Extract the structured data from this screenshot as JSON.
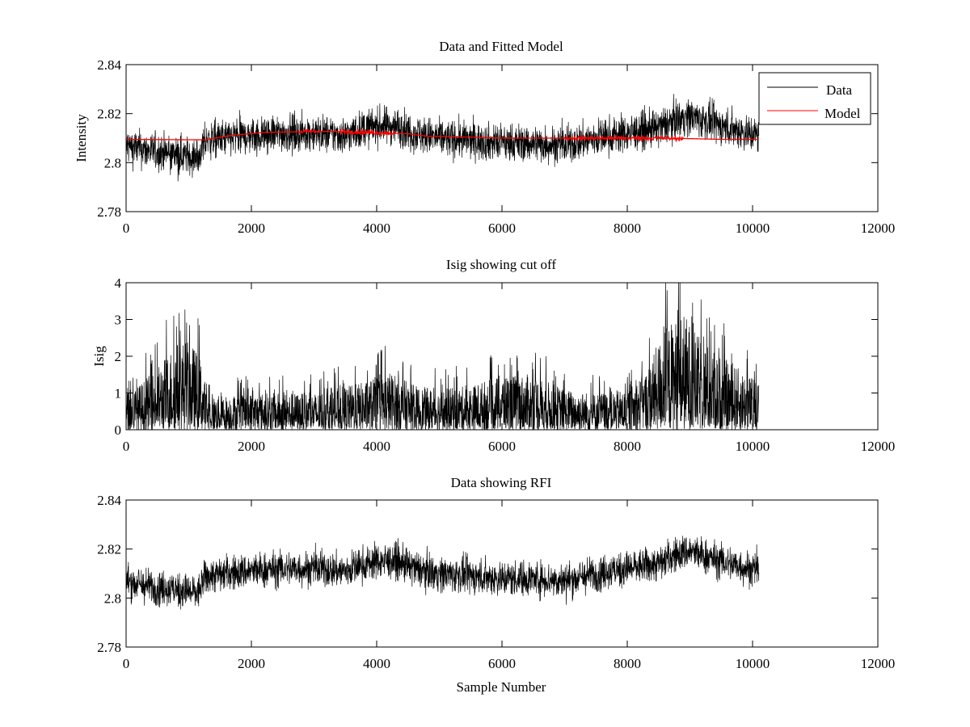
{
  "figure": {
    "background": "#ffffff",
    "data_color": "#000000",
    "model_color": "#ff0000"
  },
  "chart_data": [
    {
      "type": "line",
      "title": "Data and Fitted Model",
      "xlabel": "",
      "ylabel": "Intensity",
      "xlim": [
        0,
        12000
      ],
      "ylim": [
        2.78,
        2.84
      ],
      "xticks": [
        0,
        2000,
        4000,
        6000,
        8000,
        10000,
        12000
      ],
      "xtick_labels": [
        "0",
        "2000",
        "4000",
        "6000",
        "8000",
        "10000",
        "12000"
      ],
      "yticks": [
        2.78,
        2.8,
        2.82,
        2.84
      ],
      "ytick_labels": [
        "2.78",
        "2.8",
        "2.82",
        "2.84"
      ],
      "legend": {
        "position": "top-right",
        "entries": [
          "Data",
          "Model"
        ]
      },
      "series": [
        {
          "name": "Data",
          "color": "#000000",
          "style": "noisy",
          "noise": 0.0038,
          "x": [
            0,
            300,
            600,
            900,
            1150,
            1250,
            1300,
            1600,
            2000,
            2500,
            3000,
            3500,
            3700,
            4000,
            4300,
            4600,
            5000,
            5500,
            6000,
            6500,
            7000,
            7500,
            8000,
            8500,
            8800,
            9000,
            9500,
            10100
          ],
          "y": [
            2.807,
            2.805,
            2.804,
            2.803,
            2.802,
            2.808,
            2.809,
            2.81,
            2.811,
            2.812,
            2.812,
            2.811,
            2.813,
            2.815,
            2.815,
            2.812,
            2.81,
            2.809,
            2.808,
            2.808,
            2.807,
            2.81,
            2.812,
            2.814,
            2.818,
            2.819,
            2.815,
            2.811
          ]
        },
        {
          "name": "Model",
          "color": "#ff0000",
          "style": "smooth",
          "noise": 0.0006,
          "x": [
            0,
            1250,
            1700,
            2200,
            2900,
            3500,
            4000,
            4500,
            4800,
            5500,
            6000,
            6500,
            7000,
            7500,
            8000,
            8500,
            9000,
            9500,
            10100
          ],
          "y": [
            2.8095,
            2.8093,
            2.8112,
            2.8123,
            2.8127,
            2.8127,
            2.8123,
            2.8118,
            2.8108,
            2.8104,
            2.81,
            2.81,
            2.81,
            2.81,
            2.81,
            2.81,
            2.8098,
            2.8095,
            2.8095
          ]
        }
      ]
    },
    {
      "type": "line",
      "title": "Isig showing cut off",
      "xlabel": "",
      "ylabel": "Isig",
      "xlim": [
        0,
        12000
      ],
      "ylim": [
        0,
        4
      ],
      "xticks": [
        0,
        2000,
        4000,
        6000,
        8000,
        10000,
        12000
      ],
      "xtick_labels": [
        "0",
        "2000",
        "4000",
        "6000",
        "8000",
        "10000",
        "12000"
      ],
      "yticks": [
        0,
        1,
        2,
        3,
        4
      ],
      "ytick_labels": [
        "0",
        "1",
        "2",
        "3",
        "4"
      ],
      "series": [
        {
          "name": "Isig",
          "color": "#000000",
          "style": "envelope",
          "x": [
            0,
            200,
            500,
            800,
            1000,
            1200,
            1300,
            2000,
            3000,
            3800,
            4200,
            4600,
            5000,
            5500,
            6000,
            6500,
            7000,
            7500,
            8000,
            8300,
            8600,
            8900,
            9100,
            9500,
            10100
          ],
          "y": [
            1.0,
            1.2,
            1.7,
            2.4,
            2.5,
            1.9,
            0.9,
            1.0,
            1.0,
            1.3,
            1.6,
            1.2,
            1.1,
            1.2,
            1.5,
            1.5,
            1.1,
            1.0,
            1.1,
            1.6,
            2.8,
            3.2,
            2.6,
            2.0,
            1.3
          ]
        }
      ]
    },
    {
      "type": "line",
      "title": "Data showing RFI",
      "xlabel": "Sample Number",
      "ylabel": "",
      "xlim": [
        0,
        12000
      ],
      "ylim": [
        2.78,
        2.84
      ],
      "xticks": [
        0,
        2000,
        4000,
        6000,
        8000,
        10000,
        12000
      ],
      "xtick_labels": [
        "0",
        "2000",
        "4000",
        "6000",
        "8000",
        "10000",
        "12000"
      ],
      "yticks": [
        2.78,
        2.8,
        2.82,
        2.84
      ],
      "ytick_labels": [
        "2.78",
        "2.8",
        "2.82",
        "2.84"
      ],
      "series": [
        {
          "name": "Data",
          "color": "#000000",
          "style": "noisy",
          "noise": 0.0036,
          "x": [
            0,
            300,
            600,
            900,
            1150,
            1250,
            1300,
            1600,
            2000,
            2500,
            3000,
            3500,
            3700,
            4000,
            4300,
            4600,
            5000,
            5500,
            6000,
            6500,
            7000,
            7500,
            8000,
            8500,
            8800,
            9000,
            9500,
            10100
          ],
          "y": [
            2.807,
            2.805,
            2.804,
            2.803,
            2.802,
            2.808,
            2.809,
            2.81,
            2.811,
            2.812,
            2.812,
            2.811,
            2.813,
            2.815,
            2.815,
            2.812,
            2.81,
            2.809,
            2.808,
            2.808,
            2.807,
            2.81,
            2.812,
            2.814,
            2.818,
            2.819,
            2.815,
            2.811
          ]
        }
      ]
    }
  ]
}
